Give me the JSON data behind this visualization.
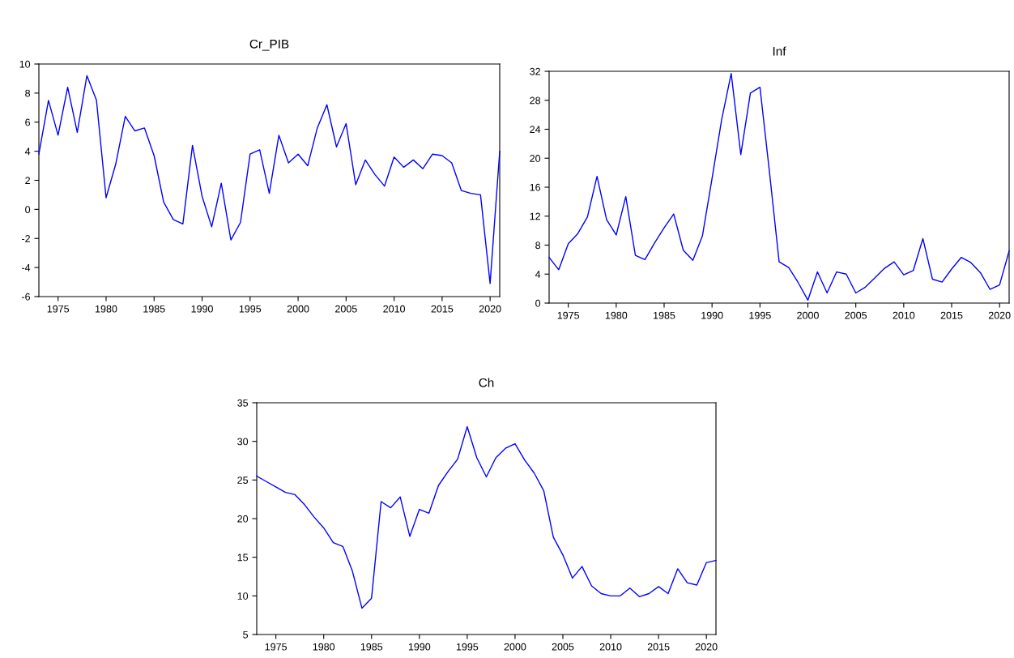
{
  "chart_data": [
    {
      "type": "line",
      "title": "Cr_PIB",
      "x": [
        1973,
        1974,
        1975,
        1976,
        1977,
        1978,
        1979,
        1980,
        1981,
        1982,
        1983,
        1984,
        1985,
        1986,
        1987,
        1988,
        1989,
        1990,
        1991,
        1992,
        1993,
        1994,
        1995,
        1996,
        1997,
        1998,
        1999,
        2000,
        2001,
        2002,
        2003,
        2004,
        2005,
        2006,
        2007,
        2008,
        2009,
        2010,
        2011,
        2012,
        2013,
        2014,
        2015,
        2016,
        2017,
        2018,
        2019,
        2020,
        2021
      ],
      "series": [
        {
          "color": "#0000ff",
          "values": [
            3.8,
            7.5,
            5.1,
            8.4,
            5.3,
            9.2,
            7.5,
            0.8,
            3.1,
            6.4,
            5.4,
            5.6,
            3.7,
            0.5,
            -0.7,
            -1.0,
            4.4,
            0.9,
            -1.2,
            1.8,
            -2.1,
            -0.9,
            3.8,
            4.1,
            1.1,
            5.1,
            3.2,
            3.8,
            3.0,
            5.6,
            7.2,
            4.3,
            5.9,
            1.7,
            3.4,
            2.4,
            1.6,
            3.6,
            2.9,
            3.4,
            2.8,
            3.8,
            3.7,
            3.2,
            1.3,
            1.1,
            1.0,
            -5.1,
            4.0
          ]
        }
      ],
      "xlim": [
        1973,
        2021
      ],
      "xticks": [
        1975,
        1980,
        1985,
        1990,
        1995,
        2000,
        2005,
        2010,
        2015,
        2020
      ],
      "ylim": [
        -6,
        10
      ],
      "yticks": [
        -6,
        -4,
        -2,
        0,
        2,
        4,
        6,
        8,
        10
      ]
    },
    {
      "type": "line",
      "title": "Inf",
      "x": [
        1973,
        1974,
        1975,
        1976,
        1977,
        1978,
        1979,
        1980,
        1981,
        1982,
        1983,
        1984,
        1985,
        1986,
        1987,
        1988,
        1989,
        1990,
        1991,
        1992,
        1993,
        1994,
        1995,
        1996,
        1997,
        1998,
        1999,
        2000,
        2001,
        2002,
        2003,
        2004,
        2005,
        2006,
        2007,
        2008,
        2009,
        2010,
        2011,
        2012,
        2013,
        2014,
        2015,
        2016,
        2017,
        2018,
        2019,
        2020,
        2021
      ],
      "series": [
        {
          "color": "#0000ff",
          "values": [
            6.3,
            4.6,
            8.2,
            9.6,
            11.9,
            17.5,
            11.5,
            9.4,
            14.7,
            6.6,
            6.0,
            8.3,
            10.4,
            12.3,
            7.3,
            5.9,
            9.3,
            17.2,
            25.3,
            31.7,
            20.5,
            29.0,
            29.8,
            18.0,
            5.7,
            4.9,
            2.8,
            0.4,
            4.3,
            1.4,
            4.3,
            4.0,
            1.4,
            2.2,
            3.5,
            4.8,
            5.7,
            3.9,
            4.5,
            8.9,
            3.3,
            2.9,
            4.7,
            6.3,
            5.6,
            4.2,
            1.9,
            2.5,
            7.2
          ]
        }
      ],
      "xlim": [
        1973,
        2021
      ],
      "xticks": [
        1975,
        1980,
        1985,
        1990,
        1995,
        2000,
        2005,
        2010,
        2015,
        2020
      ],
      "ylim": [
        0,
        32
      ],
      "yticks": [
        0,
        4,
        8,
        12,
        16,
        20,
        24,
        28,
        32
      ]
    },
    {
      "type": "line",
      "title": "Ch",
      "x": [
        1973,
        1974,
        1975,
        1976,
        1977,
        1978,
        1979,
        1980,
        1981,
        1982,
        1983,
        1984,
        1985,
        1986,
        1987,
        1988,
        1989,
        1990,
        1991,
        1992,
        1993,
        1994,
        1995,
        1996,
        1997,
        1998,
        1999,
        2000,
        2001,
        2002,
        2003,
        2004,
        2005,
        2006,
        2007,
        2008,
        2009,
        2010,
        2011,
        2012,
        2013,
        2014,
        2015,
        2016,
        2017,
        2018,
        2019,
        2020,
        2021
      ],
      "series": [
        {
          "color": "#0000ff",
          "values": [
            25.5,
            24.8,
            24.1,
            23.4,
            23.1,
            21.8,
            20.2,
            18.8,
            16.9,
            16.4,
            13.2,
            8.4,
            9.7,
            22.2,
            21.4,
            22.8,
            17.7,
            21.2,
            20.7,
            24.3,
            26.1,
            27.7,
            31.9,
            27.9,
            25.4,
            27.9,
            29.1,
            29.7,
            27.6,
            25.9,
            23.6,
            17.6,
            15.3,
            12.3,
            13.8,
            11.3,
            10.3,
            10.0,
            10.0,
            11.0,
            9.9,
            10.3,
            11.2,
            10.3,
            13.5,
            11.7,
            11.4,
            14.3,
            14.6
          ]
        }
      ],
      "xlim": [
        1973,
        2021
      ],
      "xticks": [
        1975,
        1980,
        1985,
        1990,
        1995,
        2000,
        2005,
        2010,
        2015,
        2020
      ],
      "ylim": [
        5,
        35
      ],
      "yticks": [
        5,
        10,
        15,
        20,
        25,
        30,
        35
      ]
    }
  ]
}
